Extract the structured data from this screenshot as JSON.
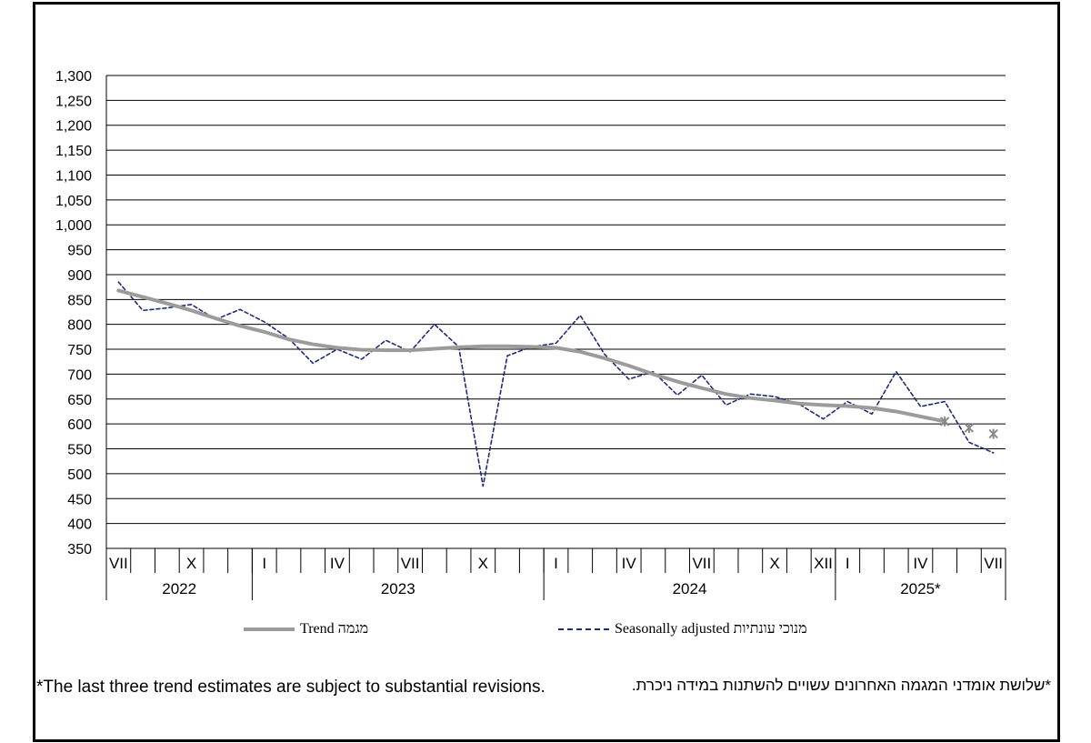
{
  "chart_data": {
    "type": "line",
    "y_ticks": [
      "1,300",
      "1,250",
      "1,200",
      "1,150",
      "1,100",
      "1,050",
      "1,000",
      "950",
      "900",
      "850",
      "800",
      "750",
      "700",
      "650",
      "600",
      "550",
      "500",
      "450",
      "400",
      "350"
    ],
    "ylim": [
      350,
      1300
    ],
    "x_month_labels": [
      "VII",
      "",
      "",
      "X",
      "",
      "",
      "I",
      "",
      "",
      "IV",
      "",
      "",
      "VII",
      "",
      "",
      "X",
      "",
      "",
      "I",
      "",
      "",
      "IV",
      "",
      "",
      "VII",
      "",
      "",
      "X",
      "",
      "XII",
      "I",
      "",
      "",
      "IV",
      "",
      "",
      "VII"
    ],
    "x_year_labels": [
      {
        "label": "2022",
        "start": 0,
        "end": 6
      },
      {
        "label": "2023",
        "start": 6,
        "end": 18
      },
      {
        "label": "2024",
        "start": 18,
        "end": 30
      },
      {
        "label": "2025*",
        "start": 30,
        "end": 37
      }
    ],
    "series": [
      {
        "name": "Seasonally adjusted מנוכי עונתיות",
        "color": "#1f2a7a",
        "style": "dashed",
        "values": [
          885,
          828,
          833,
          840,
          810,
          830,
          805,
          772,
          722,
          750,
          730,
          768,
          745,
          800,
          755,
          475,
          737,
          755,
          762,
          818,
          740,
          690,
          705,
          658,
          698,
          638,
          660,
          655,
          640,
          610,
          645,
          620,
          705,
          635,
          645,
          563,
          542
        ]
      },
      {
        "name": "Trend מגמה",
        "color": "#9b9b9b",
        "style": "solid",
        "values": [
          868,
          855,
          842,
          828,
          812,
          797,
          785,
          770,
          760,
          753,
          749,
          748,
          748,
          751,
          754,
          756,
          756,
          755,
          753,
          745,
          732,
          717,
          700,
          685,
          672,
          660,
          652,
          647,
          641,
          638,
          636,
          632,
          625,
          615,
          605,
          592,
          580
        ],
        "starred_from_index": 34
      }
    ]
  },
  "legend": {
    "trend_label": "Trend מגמה",
    "sa_label": "Seasonally adjusted מנוכי עונתיות"
  },
  "notes": {
    "english": "*The last three trend estimates are subject to substantial revisions.",
    "hebrew": "*שלושת אומדני המגמה האחרונים עשויים להשתנות במידה ניכרת."
  }
}
